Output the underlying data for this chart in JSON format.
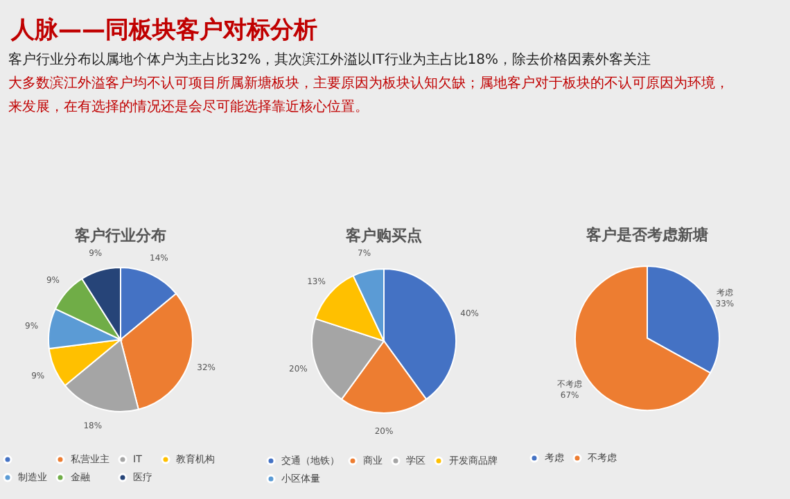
{
  "chart_data": [
    {
      "type": "other",
      "title": "人脉——同板块客户对标分析",
      "annotations": [
        "客户行业分布以属地个体户为主占比32%，其次滨江外溢以IT行业为主占比18%，除去价格因素外客关注",
        "大多数滨江外溢客户均不认可项目所属新塘板块，主要原因为板块认知欠缺；属地客户对于板块的不认可原因为环境，",
        "来发展，在有选择的情况还是会尽可能选择靠近核心位置。"
      ]
    },
    {
      "type": "pie",
      "title": "客户行业分布",
      "categories": [
        null,
        "私营业主",
        "IT",
        "教育机构",
        "制造业",
        "金融",
        "医疗"
      ],
      "values": [
        14,
        32,
        18,
        9,
        9,
        9,
        9
      ],
      "colors": [
        "#4472c4",
        "#ed7d31",
        "#a5a5a5",
        "#ffc000",
        "#5b9bd5",
        "#70ad47",
        "#264478"
      ],
      "value_labels": [
        "14%",
        "32%",
        "18%",
        "9%",
        "9%",
        "9%",
        "9%"
      ],
      "legend": "bottom"
    },
    {
      "type": "pie",
      "title": "客户购买点",
      "categories": [
        "交通（地铁）",
        "商业",
        "学区",
        "开发商品牌",
        "小区体量"
      ],
      "values": [
        40,
        20,
        20,
        13,
        7
      ],
      "colors": [
        "#4472c4",
        "#ed7d31",
        "#a5a5a5",
        "#ffc000",
        "#5b9bd5"
      ],
      "value_labels": [
        "40%",
        "20%",
        "20%",
        "13%",
        "7%"
      ],
      "legend": "bottom"
    },
    {
      "type": "pie",
      "title": "客户是否考虑新塘",
      "categories": [
        "考虑",
        "不考虑"
      ],
      "values": [
        33,
        67
      ],
      "colors": [
        "#4472c4",
        "#ed7d31"
      ],
      "value_labels": [
        "考虑\n33%",
        "不考虑\n67%"
      ],
      "legend": "bottom"
    }
  ]
}
